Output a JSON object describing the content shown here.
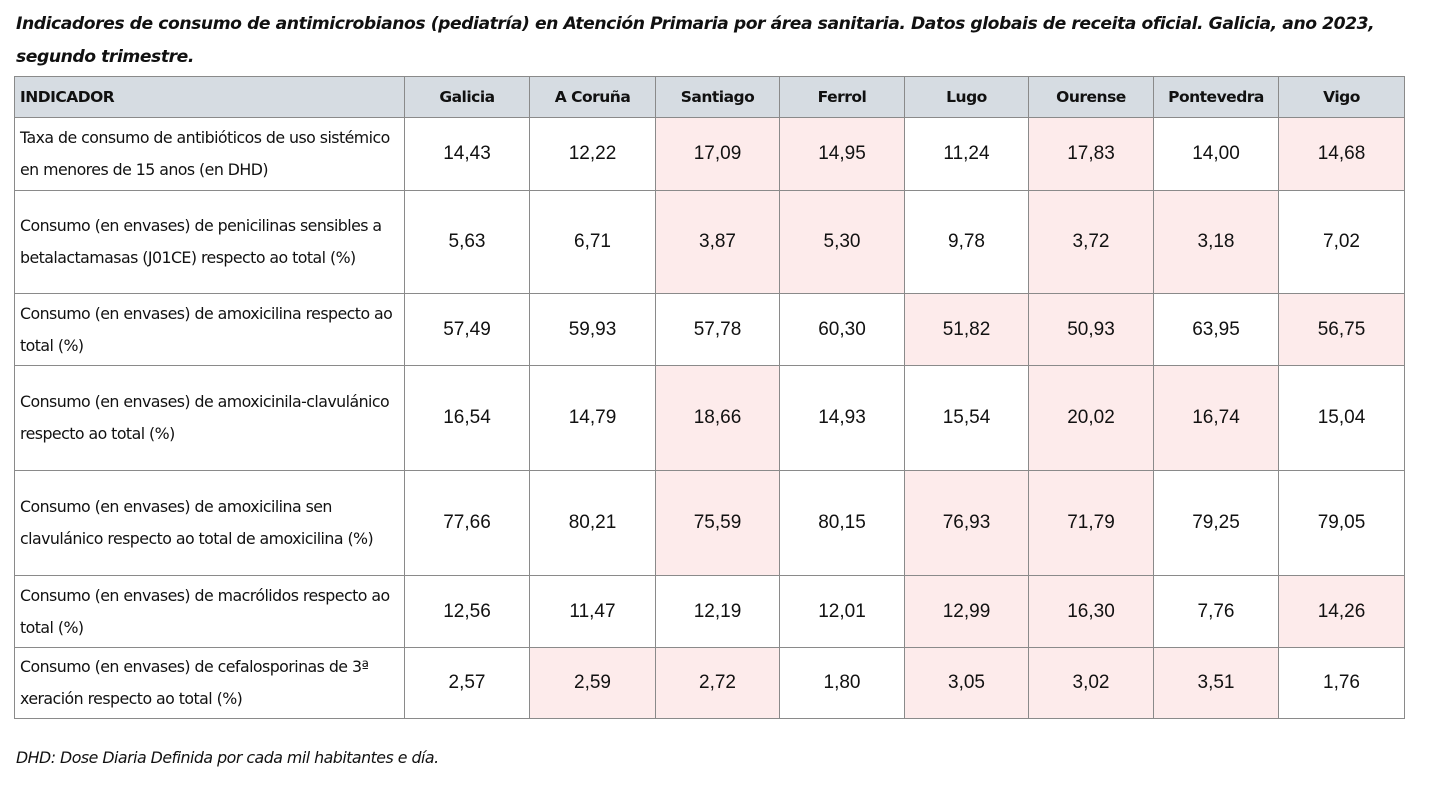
{
  "title": "Indicadores de consumo de antimicrobianos (pediatría) en Atención Primaria por área sanitaria. Datos globais de receita oficial. Galicia, ano 2023, segundo trimestre.",
  "table": {
    "headers": [
      "INDICADOR",
      "Galicia",
      "A Coruña",
      "Santiago",
      "Ferrol",
      "Lugo",
      "Ourense",
      "Pontevedra",
      "Vigo"
    ],
    "rows": [
      {
        "label": "Taxa de consumo de antibióticos de uso sistémico en menores de 15 anos (en DHD)",
        "values": [
          "14,43",
          "12,22",
          "17,09",
          "14,95",
          "11,24",
          "17,83",
          "14,00",
          "14,68"
        ],
        "highlighted": [
          false,
          false,
          true,
          true,
          false,
          true,
          false,
          true
        ]
      },
      {
        "label": "Consumo (en envases) de penicilinas sensibles a betalactamasas (J01CE) respecto ao total (%)",
        "values": [
          "5,63",
          "6,71",
          "3,87",
          "5,30",
          "9,78",
          "3,72",
          "3,18",
          "7,02"
        ],
        "highlighted": [
          false,
          false,
          true,
          true,
          false,
          true,
          true,
          false
        ]
      },
      {
        "label": "Consumo (en envases) de amoxicilina respecto ao total (%)",
        "values": [
          "57,49",
          "59,93",
          "57,78",
          "60,30",
          "51,82",
          "50,93",
          "63,95",
          "56,75"
        ],
        "highlighted": [
          false,
          false,
          false,
          false,
          true,
          true,
          false,
          true
        ]
      },
      {
        "label": "Consumo (en envases) de amoxicinila-clavulánico respecto ao total (%)",
        "values": [
          "16,54",
          "14,79",
          "18,66",
          "14,93",
          "15,54",
          "20,02",
          "16,74",
          "15,04"
        ],
        "highlighted": [
          false,
          false,
          true,
          false,
          false,
          true,
          true,
          false
        ]
      },
      {
        "label": "Consumo (en envases) de amoxicilina sen clavulánico respecto ao total de amoxicilina (%)",
        "values": [
          "77,66",
          "80,21",
          "75,59",
          "80,15",
          "76,93",
          "71,79",
          "79,25",
          "79,05"
        ],
        "highlighted": [
          false,
          false,
          true,
          false,
          true,
          true,
          false,
          false
        ]
      },
      {
        "label": "Consumo (en envases) de macrólidos respecto ao total (%)",
        "values": [
          "12,56",
          "11,47",
          "12,19",
          "12,01",
          "12,99",
          "16,30",
          "7,76",
          "14,26"
        ],
        "highlighted": [
          false,
          false,
          false,
          false,
          true,
          true,
          false,
          true
        ]
      },
      {
        "label": "Consumo (en envases) de cefalosporinas de 3ª xeración respecto ao total (%)",
        "values": [
          "2,57",
          "2,59",
          "2,72",
          "1,80",
          "3,05",
          "3,02",
          "3,51",
          "1,76"
        ],
        "highlighted": [
          false,
          true,
          true,
          false,
          true,
          true,
          true,
          false
        ]
      }
    ]
  },
  "footnote": "DHD: Dose Diaria Definida por cada mil habitantes e día.",
  "colors": {
    "header_bg": "#d6dce2",
    "highlight_bg": "#fdebeb",
    "border": "#8a8a8a"
  }
}
